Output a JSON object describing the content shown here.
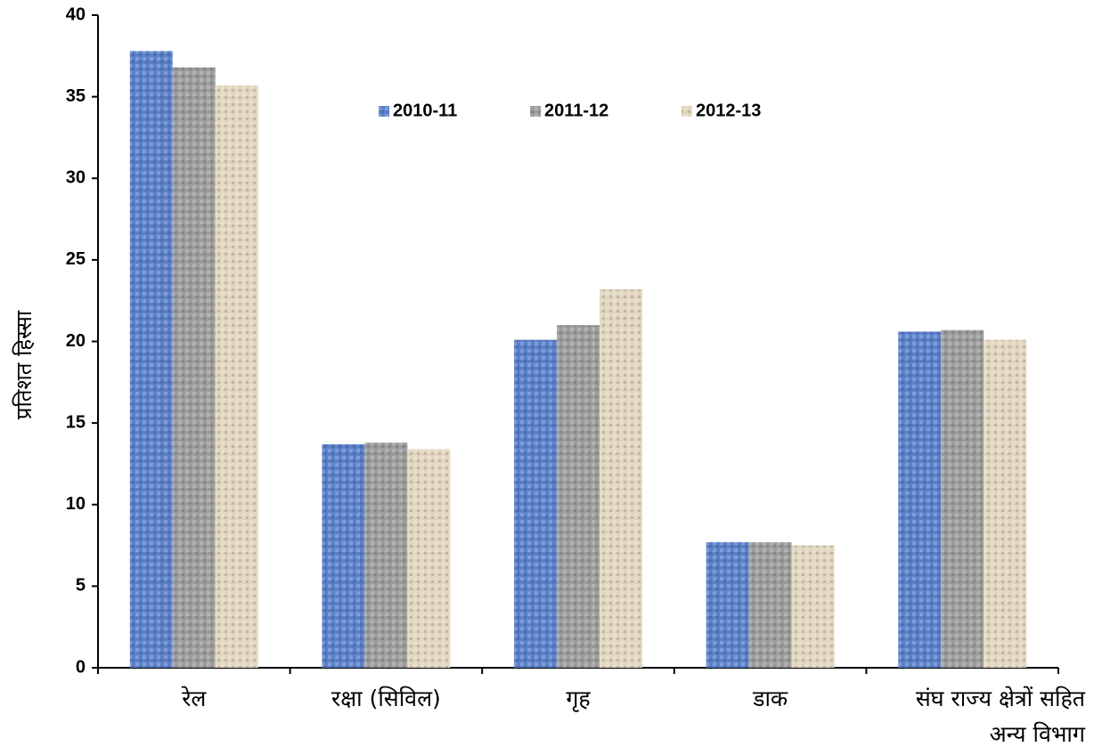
{
  "chart_data": {
    "type": "bar",
    "y_label": "प्रतिशत हिस्सा",
    "categories": [
      "रेल",
      "रक्षा (सिविल)",
      "गृह",
      "डाक",
      "संघ राज्य क्षेत्रों सहित अन्य विभाग"
    ],
    "series": [
      {
        "name": "2010-11",
        "color": "#5b80c9",
        "values": [
          37.8,
          13.7,
          20.1,
          7.7,
          20.6
        ]
      },
      {
        "name": "2011-12",
        "color": "#9c9c9c",
        "values": [
          36.8,
          13.8,
          21.0,
          7.7,
          20.7
        ]
      },
      {
        "name": "2012-13",
        "color": "#e2d6be",
        "values": [
          35.7,
          13.4,
          23.2,
          7.5,
          20.1
        ]
      }
    ],
    "ylim": [
      0,
      40
    ],
    "yticks": [
      0,
      5,
      10,
      15,
      20,
      25,
      30,
      35,
      40
    ],
    "grid": false,
    "legend": "top"
  }
}
